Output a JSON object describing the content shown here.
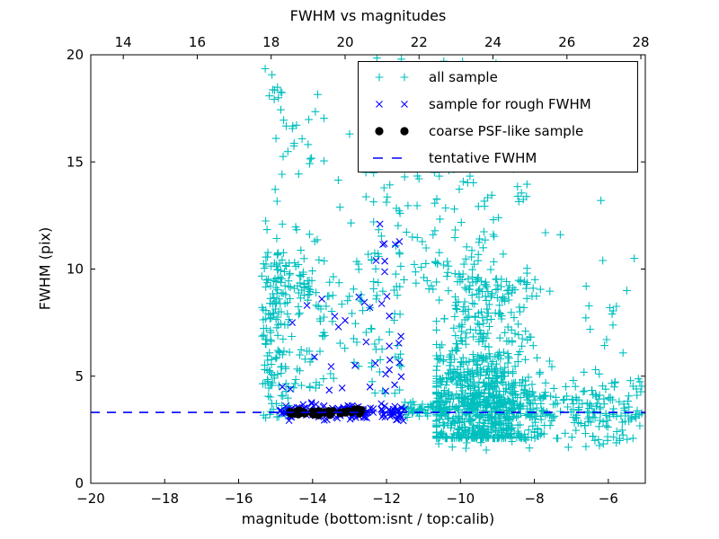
{
  "chart_data": {
    "type": "scatter",
    "title": "FWHM vs magnitudes",
    "xlabel": "magnitude (bottom:isnt / top:calib)",
    "ylabel": "FWHM (pix)",
    "axes": {
      "xlim": [
        -20,
        -5
      ],
      "ylim": [
        0,
        20
      ],
      "top_axis_offset": 33.12,
      "bottom_ticks": {
        "values": [
          -20,
          -18,
          -16,
          -14,
          -12,
          -10,
          -8,
          -6
        ],
        "labels": [
          "−20",
          "−18",
          "−16",
          "−14",
          "−12",
          "−10",
          "−8",
          "−6"
        ]
      },
      "top_ticks": {
        "values": [
          14,
          16,
          18,
          20,
          22,
          24,
          26,
          28
        ],
        "labels": [
          "14",
          "16",
          "18",
          "20",
          "22",
          "24",
          "26",
          "28"
        ]
      },
      "y_ticks": {
        "values": [
          0,
          5,
          10,
          15,
          20
        ],
        "labels": [
          "0",
          "5",
          "10",
          "15",
          "20"
        ]
      },
      "grid": false
    },
    "tentative_fwhm": 3.31,
    "seed": 42,
    "series": [
      {
        "name": "all sample",
        "marker": "plus",
        "color_key": "all_sample",
        "clusters": [
          {
            "n": 60,
            "mag": [
              "u",
              -15.35,
              -14.62
            ],
            "fwhm": [
              "u",
              3.0,
              6.5
            ]
          },
          {
            "n": 95,
            "mag": [
              "u",
              -15.38,
              -14.6
            ],
            "fwhm": [
              "u",
              6.5,
              10.8
            ]
          },
          {
            "n": 22,
            "mag": [
              "u",
              -15.3,
              -14.6
            ],
            "fwhm": [
              "u",
              10.8,
              19.4
            ]
          },
          {
            "n": 55,
            "mag": [
              "u",
              -14.6,
              -13.55
            ],
            "fwhm": [
              "u",
              4.2,
              12.0
            ]
          },
          {
            "n": 16,
            "mag": [
              "u",
              -14.55,
              -13.6
            ],
            "fwhm": [
              "u",
              12.0,
              18.6
            ]
          },
          {
            "n": 22,
            "mag": [
              "g",
              -14.25,
              0.15,
              -14.6,
              -13.9
            ],
            "fwhm": [
              "g",
              9.3,
              0.6
            ]
          },
          {
            "n": 70,
            "mag": [
              "u",
              -13.55,
              -11.6
            ],
            "fwhm": [
              "u",
              4.2,
              11.5
            ]
          },
          {
            "n": 10,
            "mag": [
              "u",
              -13.6,
              -11.9
            ],
            "fwhm": [
              "u",
              11.5,
              15.5
            ]
          },
          {
            "n": 55,
            "mag": [
              "u",
              -11.55,
              -10.4
            ],
            "fwhm": [
              "g",
              3.45,
              0.18
            ]
          },
          {
            "n": 550,
            "mag": [
              "g",
              -9.4,
              0.75,
              -10.65,
              -7.1
            ],
            "fwhm": [
              "p",
              2.1,
              7.5,
              2.2
            ]
          },
          {
            "n": 300,
            "mag": [
              "g",
              -9.0,
              1.05,
              -10.65,
              -6.2
            ],
            "fwhm": [
              "g",
              3.6,
              0.65,
              2.0,
              6.0
            ]
          },
          {
            "n": 150,
            "mag": [
              "g",
              -9.6,
              0.6,
              -10.65,
              -8.0
            ],
            "fwhm": [
              "g",
              5.0,
              1.1,
              3.0,
              8.5
            ]
          },
          {
            "n": 120,
            "mag": [
              "g",
              -10.2,
              1.0,
              -12.35,
              -8.2
            ],
            "fwhm": [
              "p",
              9.0,
              5.8,
              1.7
            ]
          },
          {
            "n": 110,
            "mag": [
              "u",
              -7.0,
              -5.05
            ],
            "fwhm": [
              "g",
              3.5,
              0.8,
              2.0,
              6.0
            ]
          },
          {
            "n": 10,
            "mag": [
              "u",
              -6.9,
              -5.2
            ],
            "fwhm": [
              "u",
              6.0,
              8.5
            ]
          },
          {
            "n": 22,
            "mag": [
              "u",
              -10.6,
              -5.3
            ],
            "fwhm": [
              "u",
              1.6,
              2.4
            ]
          },
          {
            "n": 8,
            "mag": [
              "u",
              -12.6,
              -8.6
            ],
            "fwhm": [
              "u",
              18.2,
              19.8
            ]
          }
        ],
        "points": [
          [
            -8.45,
            13.4
          ],
          [
            -8.35,
            13.55
          ],
          [
            -8.3,
            13.25
          ],
          [
            -8.42,
            13.15
          ],
          [
            -6.2,
            13.2
          ],
          [
            -7.7,
            11.7
          ],
          [
            -7.3,
            11.6
          ],
          [
            -6.15,
            10.4
          ],
          [
            -5.5,
            9.0
          ],
          [
            -8.85,
            14.9
          ],
          [
            -11.3,
            17.0
          ],
          [
            -12.26,
            19.85
          ],
          [
            -11.6,
            19.8
          ],
          [
            -10.45,
            19.7
          ],
          [
            -12.0,
            19.5
          ],
          [
            -13.0,
            16.3
          ],
          [
            -15.28,
            19.35
          ],
          [
            -9.3,
            1.55
          ],
          [
            -9.45,
            1.9
          ],
          [
            -5.3,
            10.5
          ],
          [
            -5.9,
            7.9
          ],
          [
            -6.6,
            9.2
          ]
        ]
      },
      {
        "name": "sample for rough FWHM",
        "marker": "cross",
        "color_key": "rough_fwhm",
        "clusters": [
          {
            "n": 150,
            "mag": [
              "u",
              -14.92,
              -11.5
            ],
            "fwhm": [
              "g",
              3.35,
              0.2,
              2.85,
              4.05
            ]
          },
          {
            "n": 16,
            "mag": [
              "u",
              -12.2,
              -11.6
            ],
            "fwhm": [
              "u",
              4.4,
              11.3
            ]
          }
        ],
        "points": [
          [
            -14.55,
            7.5
          ],
          [
            -14.15,
            8.3
          ],
          [
            -13.75,
            8.6
          ],
          [
            -13.4,
            7.8
          ],
          [
            -13.12,
            7.6
          ],
          [
            -12.75,
            8.7
          ],
          [
            -12.6,
            8.45
          ],
          [
            -12.45,
            8.2
          ],
          [
            -13.95,
            5.9
          ],
          [
            -13.5,
            5.45
          ],
          [
            -12.85,
            5.5
          ],
          [
            -12.3,
            5.6
          ],
          [
            -13.3,
            7.3
          ],
          [
            -12.55,
            6.6
          ],
          [
            -14.82,
            4.5
          ],
          [
            -13.55,
            4.35
          ],
          [
            -13.2,
            4.45
          ],
          [
            -12.45,
            4.5
          ],
          [
            -12.02,
            4.3
          ],
          [
            -11.78,
            4.6
          ],
          [
            -12.18,
            12.1
          ],
          [
            -12.1,
            11.15
          ],
          [
            -14.6,
            4.4
          ],
          [
            -12.28,
            10.4
          ]
        ]
      },
      {
        "name": "coarse PSF-like sample",
        "marker": "dot",
        "color_key": "psf_like",
        "clusters": [
          {
            "n": 16,
            "mag": [
              "u",
              -14.7,
              -14.2
            ],
            "fwhm": [
              "g",
              3.3,
              0.07
            ]
          },
          {
            "n": 16,
            "mag": [
              "u",
              -14.1,
              -13.42
            ],
            "fwhm": [
              "g",
              3.3,
              0.07
            ]
          },
          {
            "n": 5,
            "mag": [
              "u",
              -13.25,
              -13.02
            ],
            "fwhm": [
              "g",
              3.33,
              0.06
            ]
          },
          {
            "n": 6,
            "mag": [
              "u",
              -12.98,
              -12.68
            ],
            "fwhm": [
              "g",
              3.32,
              0.06
            ]
          }
        ],
        "points": []
      },
      {
        "name": "tentative FWHM",
        "marker": "dashed-line",
        "color_key": "tentative_line",
        "hline_y": 3.31
      }
    ]
  },
  "legend": {
    "items": [
      {
        "label": "all sample",
        "marker": "plus",
        "color_key": "all_sample"
      },
      {
        "label": "sample for rough FWHM",
        "marker": "cross",
        "color_key": "rough_fwhm"
      },
      {
        "label": "coarse PSF-like sample",
        "marker": "dot",
        "color_key": "psf_like"
      },
      {
        "label": "tentative FWHM",
        "marker": "dashed-line",
        "color_key": "tentative_line"
      }
    ]
  },
  "colors": {
    "all_sample": "#00BFBF",
    "rough_fwhm": "#0000FF",
    "psf_like": "#000000",
    "tentative_line": "#0000FF",
    "axis": "#000000",
    "background": "#FFFFFF"
  }
}
